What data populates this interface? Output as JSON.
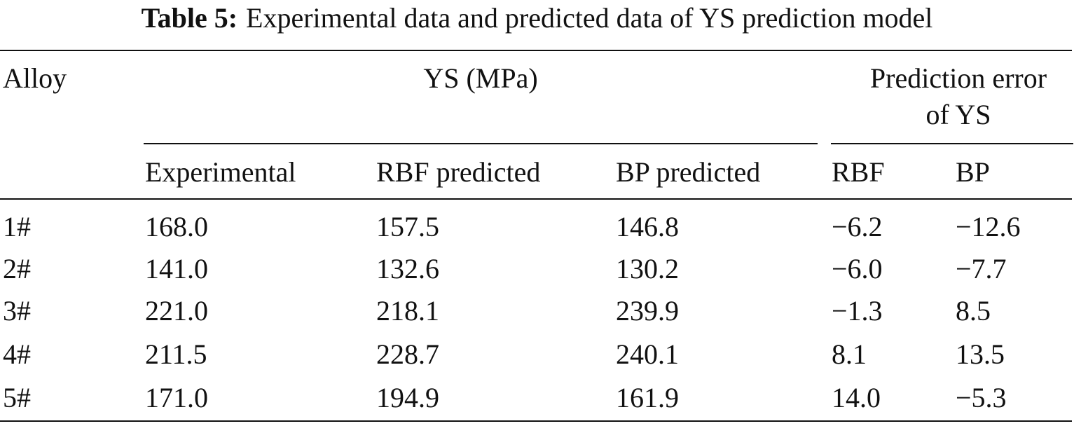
{
  "table": {
    "caption_label": "Table 5:",
    "caption_text": "Experimental data and predicted data of YS prediction model",
    "header": {
      "alloy": "Alloy",
      "ys_group": "YS (MPa)",
      "error_group_line1": "Prediction error",
      "error_group_line2": "of YS",
      "sub_experimental": "Experimental",
      "sub_rbf_predicted": "RBF predicted",
      "sub_bp_predicted": "BP predicted",
      "sub_rbf": "RBF",
      "sub_bp": "BP"
    },
    "rows": [
      {
        "alloy": "1#",
        "experimental": "168.0",
        "rbf_predicted": "157.5",
        "bp_predicted": "146.8",
        "rbf_error": "−6.2",
        "bp_error": "−12.6"
      },
      {
        "alloy": "2#",
        "experimental": "141.0",
        "rbf_predicted": "132.6",
        "bp_predicted": "130.2",
        "rbf_error": "−6.0",
        "bp_error": "−7.7"
      },
      {
        "alloy": "3#",
        "experimental": "221.0",
        "rbf_predicted": "218.1",
        "bp_predicted": "239.9",
        "rbf_error": "−1.3",
        "bp_error": "8.5"
      },
      {
        "alloy": "4#",
        "experimental": "211.5",
        "rbf_predicted": "228.7",
        "bp_predicted": "240.1",
        "rbf_error": "8.1",
        "bp_error": "13.5"
      },
      {
        "alloy": "5#",
        "experimental": "171.0",
        "rbf_predicted": "194.9",
        "bp_predicted": "161.9",
        "rbf_error": "14.0",
        "bp_error": "−5.3"
      }
    ]
  }
}
